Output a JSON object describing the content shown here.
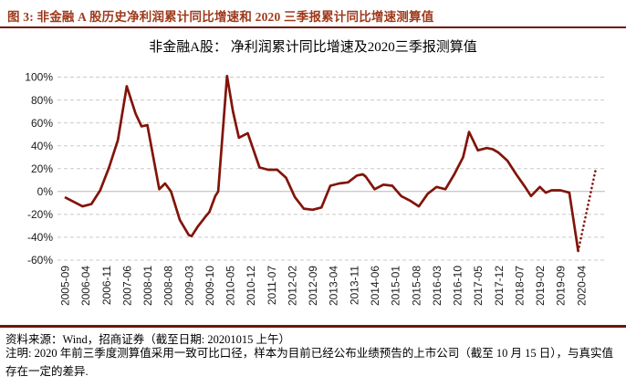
{
  "header": {
    "caption": "图 3: 非金融 A 股历史净利润累计同比增速和 2020 三季报累计同比增速测算值",
    "accent_color": "#9E3A1B",
    "rule_color": "#70150F"
  },
  "chart_data": {
    "type": "line",
    "title": "非金融A股： 净利润累计同比增速及2020三季报测算值",
    "legend": "none",
    "grid": "horizontal-dashed",
    "ylim": [
      -60,
      100
    ],
    "ytick_step": 20,
    "ytick_suffix": "%",
    "line_color": "#811409",
    "grid_color": "#c9c9c9",
    "zero_line_color": "#b8b8b8",
    "x_axis_labels": [
      "2005-09",
      "2006-04",
      "2006-11",
      "2007-06",
      "2008-01",
      "2008-08",
      "2009-03",
      "2009-10",
      "2010-05",
      "2010-12",
      "2011-07",
      "2012-02",
      "2012-09",
      "2013-04",
      "2013-11",
      "2014-06",
      "2015-01",
      "2015-08",
      "2016-03",
      "2016-10",
      "2017-05",
      "2017-12",
      "2018-07",
      "2019-02",
      "2019-09",
      "2020-04"
    ],
    "series": [
      {
        "name": "净利润累计同比增速",
        "style": "solid",
        "points": [
          [
            "2005-09",
            -5
          ],
          [
            "2005-12",
            -9
          ],
          [
            "2006-03",
            -13
          ],
          [
            "2006-06",
            -11
          ],
          [
            "2006-09",
            1
          ],
          [
            "2006-12",
            21
          ],
          [
            "2007-03",
            45
          ],
          [
            "2007-06",
            92
          ],
          [
            "2007-09",
            68
          ],
          [
            "2007-11",
            57
          ],
          [
            "2008-01",
            58
          ],
          [
            "2008-03",
            30
          ],
          [
            "2008-05",
            2
          ],
          [
            "2008-07",
            7
          ],
          [
            "2008-09",
            0
          ],
          [
            "2008-12",
            -25
          ],
          [
            "2009-03",
            -38
          ],
          [
            "2009-04",
            -39
          ],
          [
            "2009-06",
            -31
          ],
          [
            "2009-09",
            -21
          ],
          [
            "2009-10",
            -18
          ],
          [
            "2009-12",
            -4
          ],
          [
            "2010-01",
            0
          ],
          [
            "2010-04",
            101
          ],
          [
            "2010-06",
            70
          ],
          [
            "2010-08",
            47
          ],
          [
            "2010-11",
            51
          ],
          [
            "2011-03",
            21
          ],
          [
            "2011-06",
            19
          ],
          [
            "2011-09",
            19
          ],
          [
            "2011-12",
            12
          ],
          [
            "2012-03",
            -5
          ],
          [
            "2012-06",
            -15
          ],
          [
            "2012-09",
            -16
          ],
          [
            "2012-12",
            -14
          ],
          [
            "2013-03",
            5
          ],
          [
            "2013-06",
            7
          ],
          [
            "2013-09",
            8
          ],
          [
            "2013-12",
            14
          ],
          [
            "2014-02",
            15
          ],
          [
            "2014-03",
            13
          ],
          [
            "2014-06",
            2
          ],
          [
            "2014-09",
            6
          ],
          [
            "2014-12",
            5
          ],
          [
            "2015-03",
            -4
          ],
          [
            "2015-06",
            -8
          ],
          [
            "2015-09",
            -13
          ],
          [
            "2015-12",
            -2
          ],
          [
            "2016-03",
            4
          ],
          [
            "2016-06",
            2
          ],
          [
            "2016-09",
            15
          ],
          [
            "2016-12",
            30
          ],
          [
            "2017-02",
            52
          ],
          [
            "2017-05",
            36
          ],
          [
            "2017-08",
            38
          ],
          [
            "2017-10",
            37
          ],
          [
            "2017-12",
            34
          ],
          [
            "2018-03",
            27
          ],
          [
            "2018-06",
            15
          ],
          [
            "2018-09",
            4
          ],
          [
            "2018-11",
            -4
          ],
          [
            "2019-02",
            4
          ],
          [
            "2019-04",
            -1
          ],
          [
            "2019-06",
            1
          ],
          [
            "2019-09",
            1
          ],
          [
            "2019-12",
            -1
          ],
          [
            "2020-03",
            -52
          ]
        ]
      },
      {
        "name": "2020三季报测算值",
        "style": "dotted",
        "points": [
          [
            "2020-03",
            -52
          ],
          [
            "2020-06",
            -16
          ],
          [
            "2020-09",
            20
          ]
        ]
      }
    ]
  },
  "footer": {
    "source": "资料来源：Wind，招商证券（截至日期: 20201015 上午）",
    "note": "注明: 2020 年前三季度测算值采用一致可比口径，样本为目前已经公布业绩预告的上市公司（截至 10 月 15 日），与真实值存在一定的差异."
  }
}
